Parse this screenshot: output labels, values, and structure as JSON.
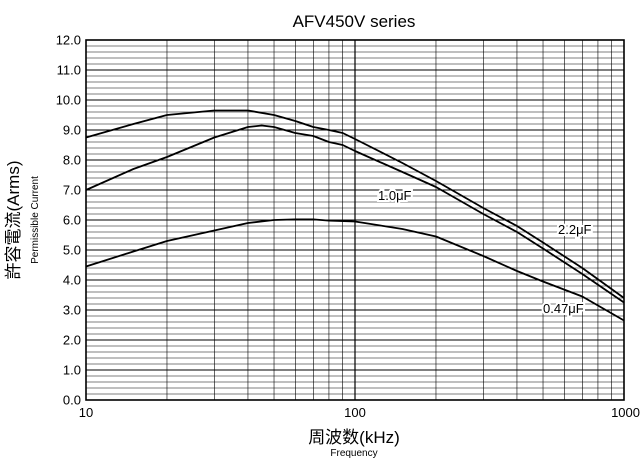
{
  "chart_data": {
    "type": "line",
    "title": "AFV450V series",
    "xlabel": "周波数(kHz)",
    "xlabel_sub": "Frequency",
    "ylabel": "許容電流(Arms)",
    "ylabel_sub": "Permissible Current",
    "xscale": "log",
    "xlim": [
      10,
      1000
    ],
    "ylim": [
      0,
      12
    ],
    "grid": true,
    "xticks": [
      "10",
      "100",
      "1000"
    ],
    "yticks": [
      "0.0",
      "1.0",
      "2.0",
      "3.0",
      "4.0",
      "5.0",
      "6.0",
      "7.0",
      "8.0",
      "9.0",
      "10.0",
      "11.0",
      "12.0"
    ],
    "series": [
      {
        "name": "2.2μF",
        "x": [
          10,
          15,
          20,
          30,
          40,
          50,
          60,
          70,
          80,
          90,
          100,
          150,
          200,
          300,
          400,
          500,
          700,
          1000
        ],
        "y": [
          8.75,
          9.2,
          9.5,
          9.65,
          9.65,
          9.5,
          9.3,
          9.1,
          9.0,
          8.9,
          8.7,
          7.9,
          7.3,
          6.4,
          5.8,
          5.25,
          4.4,
          3.4
        ]
      },
      {
        "name": "1.0μF",
        "x": [
          10,
          15,
          20,
          30,
          40,
          45,
          50,
          60,
          70,
          80,
          90,
          100,
          150,
          200,
          300,
          400,
          500,
          700,
          1000
        ],
        "y": [
          7.0,
          7.7,
          8.1,
          8.75,
          9.1,
          9.15,
          9.1,
          8.9,
          8.8,
          8.6,
          8.5,
          8.3,
          7.6,
          7.1,
          6.2,
          5.6,
          5.05,
          4.2,
          3.25
        ]
      },
      {
        "name": "0.47μF",
        "x": [
          10,
          15,
          20,
          30,
          40,
          50,
          60,
          70,
          80,
          100,
          150,
          200,
          300,
          400,
          500,
          700,
          1000
        ],
        "y": [
          4.45,
          4.95,
          5.3,
          5.65,
          5.9,
          6.0,
          6.02,
          6.02,
          5.98,
          5.95,
          5.7,
          5.45,
          4.8,
          4.3,
          3.95,
          3.45,
          2.65
        ]
      }
    ],
    "series_labels": {
      "s1": "1.0μF",
      "s2": "2.2μF",
      "s3": "0.47μF"
    }
  }
}
